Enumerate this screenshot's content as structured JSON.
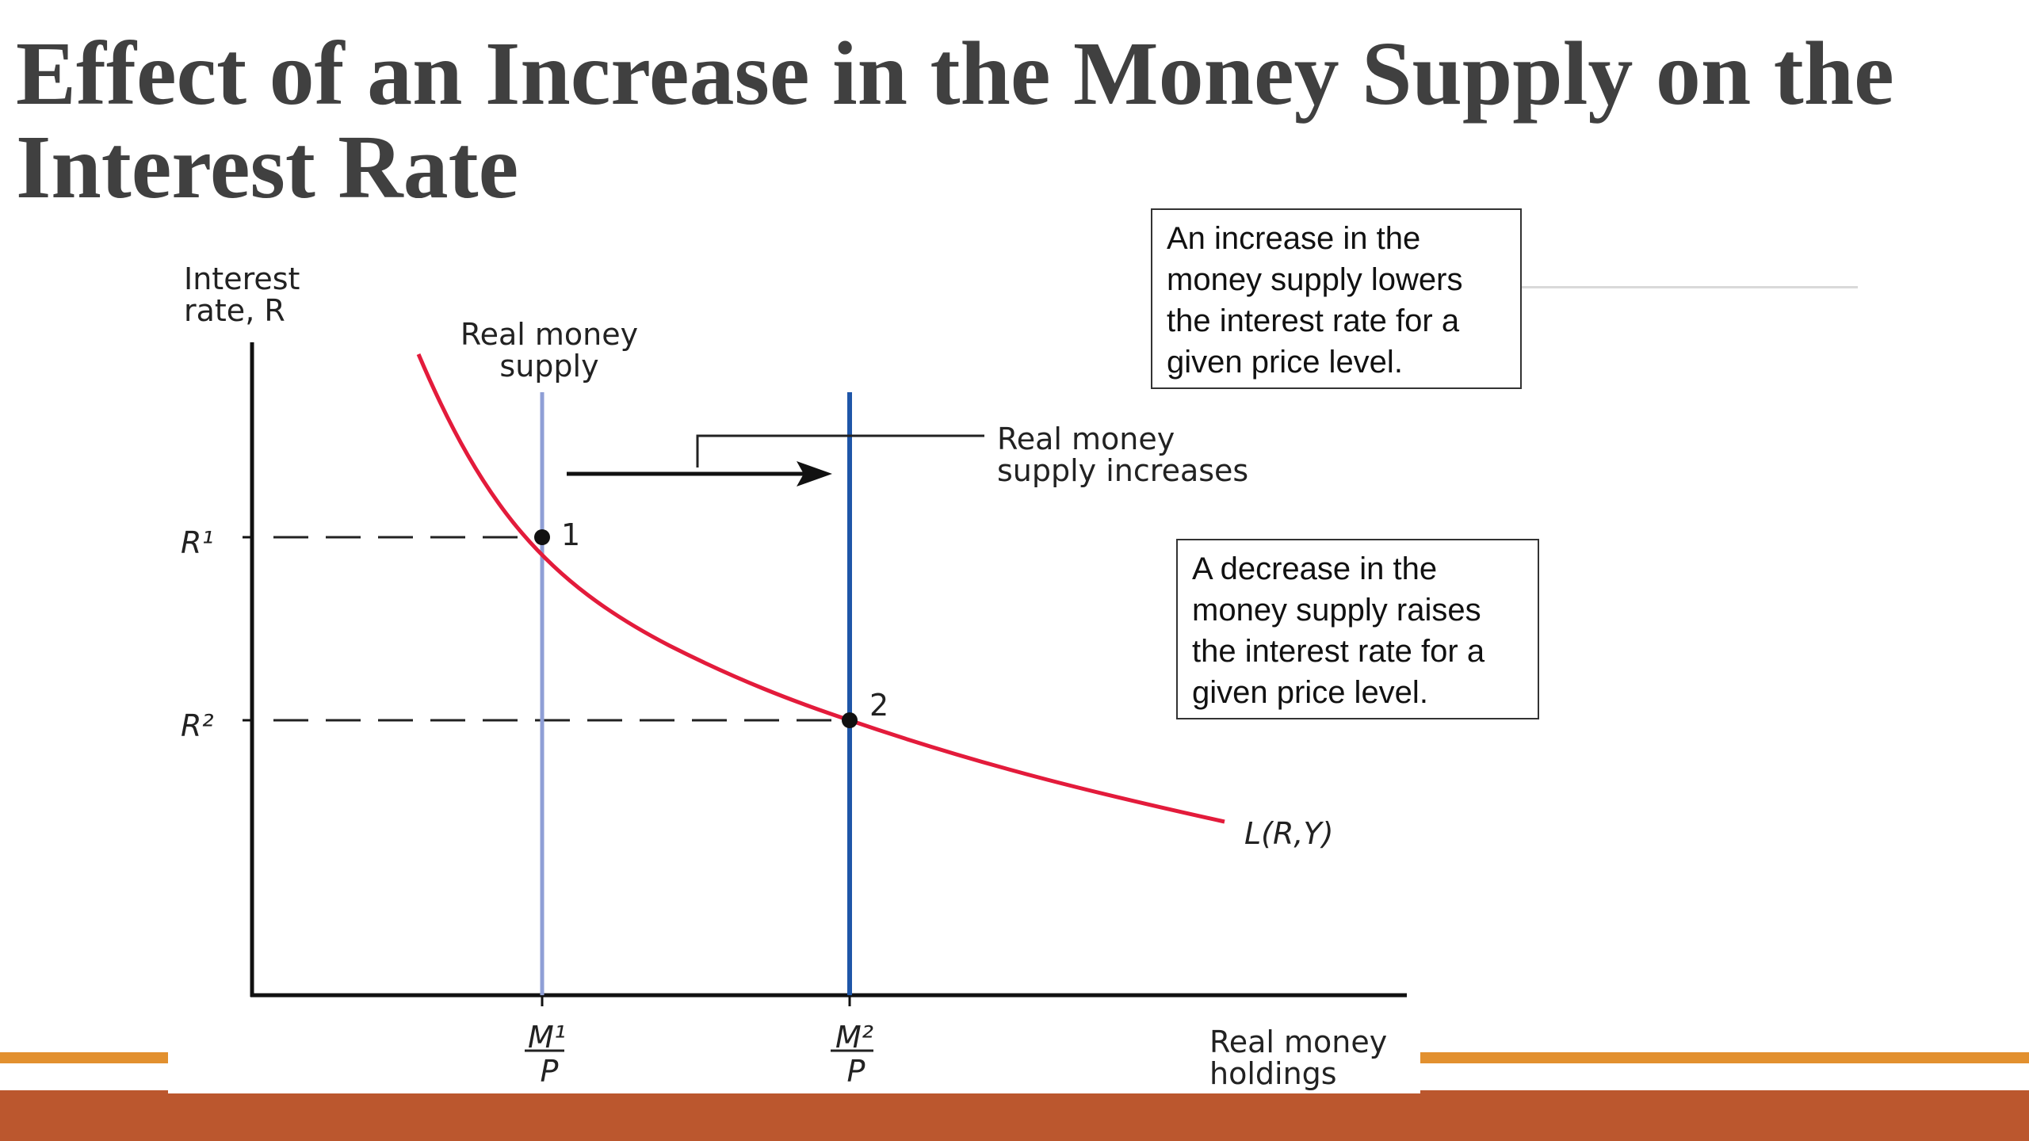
{
  "slide": {
    "title": "Effect of an Increase in the Money Supply on the Interest Rate",
    "colors": {
      "title": "#404040",
      "band_thin": "#e2902f",
      "band_thick": "#bb572e"
    }
  },
  "diagram": {
    "y_axis_label_line1": "Interest",
    "y_axis_label_line2": "rate, R",
    "x_axis_label_line1": "Real money",
    "x_axis_label_line2": "holdings",
    "supply_label_line1": "Real money",
    "supply_label_line2": "supply",
    "shift_label_line1": "Real money",
    "shift_label_line2": "supply increases",
    "curve_label": "L(R,Y)",
    "r1_label": "R¹",
    "r2_label": "R²",
    "point1_label": "1",
    "point2_label": "2",
    "m1_numerator": "M¹",
    "m2_numerator": "M²",
    "denominator": "P",
    "colors": {
      "demand_curve": "#e31b3b",
      "supply_initial": "#8f9fd6",
      "supply_new": "#1f56a8",
      "axis": "#111111"
    }
  },
  "notes": {
    "increase": "An increase in the money supply lowers the interest rate for a given price level.",
    "decrease": "A decrease in the money supply raises the interest rate for a given price level."
  }
}
